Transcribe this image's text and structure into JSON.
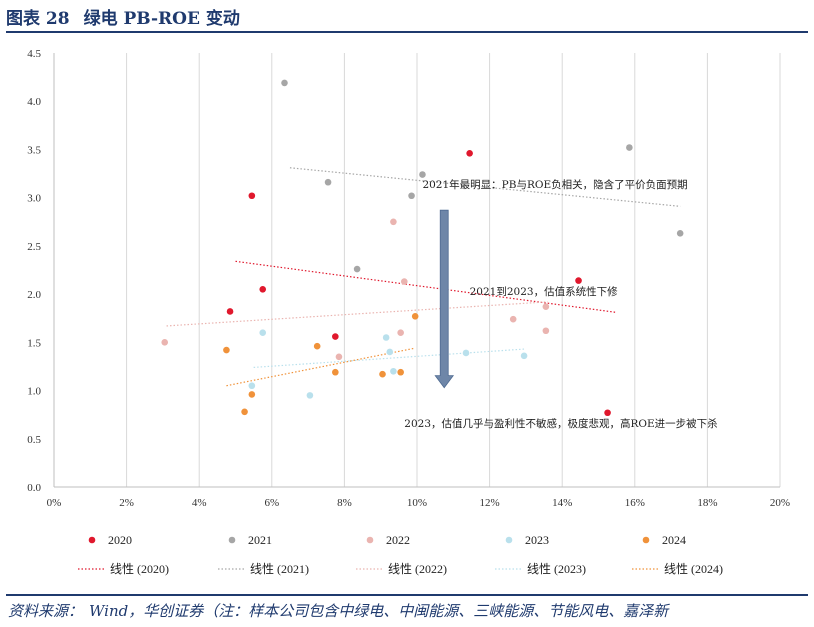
{
  "header": {
    "figure_no": "图表 28",
    "title": "绿电 PB-ROE 变动"
  },
  "source": {
    "label": "资料来源：",
    "text": "Wind，华创证券（注：样本公司包含中绿电、中闽能源、三峡能源、节能风电、嘉泽新"
  },
  "colors": {
    "title": "#1f3a6e",
    "2020": "#e0182d",
    "2021": "#a6a6a6",
    "2022": "#eab4b0",
    "2023": "#b9e0ec",
    "2024": "#f0923a",
    "arrow": "#6e86a8"
  },
  "chart_data": {
    "type": "scatter",
    "xlabel": "",
    "ylabel": "",
    "xlim": [
      0,
      0.2
    ],
    "ylim": [
      0,
      4.5
    ],
    "x_ticks": [
      "0%",
      "2%",
      "4%",
      "6%",
      "8%",
      "10%",
      "12%",
      "14%",
      "16%",
      "18%",
      "20%"
    ],
    "y_ticks": [
      "0.0",
      "0.5",
      "1.0",
      "1.5",
      "2.0",
      "2.5",
      "3.0",
      "3.5",
      "4.0",
      "4.5"
    ],
    "grid": "vertical",
    "series": [
      {
        "name": "2020",
        "trend_label": "线性 (2020)",
        "points": [
          [
            0.0485,
            1.82
          ],
          [
            0.0545,
            3.02
          ],
          [
            0.0575,
            2.05
          ],
          [
            0.0775,
            1.56
          ],
          [
            0.1145,
            3.46
          ],
          [
            0.1445,
            2.14
          ],
          [
            0.1525,
            0.77
          ]
        ]
      },
      {
        "name": "2021",
        "trend_label": "线性 (2021)",
        "points": [
          [
            0.0635,
            4.19
          ],
          [
            0.0755,
            3.16
          ],
          [
            0.0835,
            2.26
          ],
          [
            0.0985,
            3.02
          ],
          [
            0.1015,
            3.24
          ],
          [
            0.1585,
            3.52
          ],
          [
            0.1725,
            2.63
          ]
        ]
      },
      {
        "name": "2022",
        "trend_label": "线性 (2022)",
        "points": [
          [
            0.0305,
            1.5
          ],
          [
            0.0785,
            1.35
          ],
          [
            0.0935,
            2.75
          ],
          [
            0.0955,
            1.6
          ],
          [
            0.0965,
            2.13
          ],
          [
            0.1265,
            1.74
          ],
          [
            0.1355,
            1.87
          ],
          [
            0.1355,
            1.62
          ]
        ]
      },
      {
        "name": "2023",
        "trend_label": "线性 (2023)",
        "points": [
          [
            0.0545,
            1.05
          ],
          [
            0.0575,
            1.6
          ],
          [
            0.0705,
            0.95
          ],
          [
            0.0915,
            1.55
          ],
          [
            0.0925,
            1.4
          ],
          [
            0.0935,
            1.2
          ],
          [
            0.1135,
            1.39
          ],
          [
            0.1295,
            1.36
          ]
        ]
      },
      {
        "name": "2024",
        "trend_label": "线性 (2024)",
        "points": [
          [
            0.0475,
            1.42
          ],
          [
            0.0525,
            0.78
          ],
          [
            0.0545,
            0.96
          ],
          [
            0.0725,
            1.46
          ],
          [
            0.0775,
            1.19
          ],
          [
            0.0905,
            1.17
          ],
          [
            0.0955,
            1.19
          ],
          [
            0.0995,
            1.77
          ]
        ]
      }
    ],
    "trendlines": [
      {
        "name": "线性 (2020)",
        "from": [
          0.05,
          2.34
        ],
        "to": [
          0.155,
          1.81
        ]
      },
      {
        "name": "线性 (2021)",
        "from": [
          0.065,
          3.31
        ],
        "to": [
          0.1725,
          2.91
        ]
      },
      {
        "name": "线性 (2022)",
        "from": [
          0.031,
          1.67
        ],
        "to": [
          0.136,
          1.92
        ]
      },
      {
        "name": "线性 (2023)",
        "from": [
          0.055,
          1.24
        ],
        "to": [
          0.1295,
          1.43
        ]
      },
      {
        "name": "线性 (2024)",
        "from": [
          0.0475,
          1.05
        ],
        "to": [
          0.0995,
          1.44
        ]
      }
    ],
    "annotations": [
      {
        "id": "a2021",
        "text": "2021年最明显：PB与ROE负相关，隐含了平价负面预期",
        "at": [
          0.1015,
          3.1
        ]
      },
      {
        "id": "a2123",
        "text": "2021到2023，估值系统性下修",
        "at": [
          0.1145,
          1.99
        ]
      },
      {
        "id": "a2023",
        "text": "2023，估值几乎与盈利性不敏感，极度悲观，高ROE进一步被下杀",
        "at": [
          0.0965,
          0.62
        ]
      }
    ],
    "arrow": {
      "x": 0.1075,
      "y_from": 2.87,
      "y_to": 1.03
    }
  }
}
